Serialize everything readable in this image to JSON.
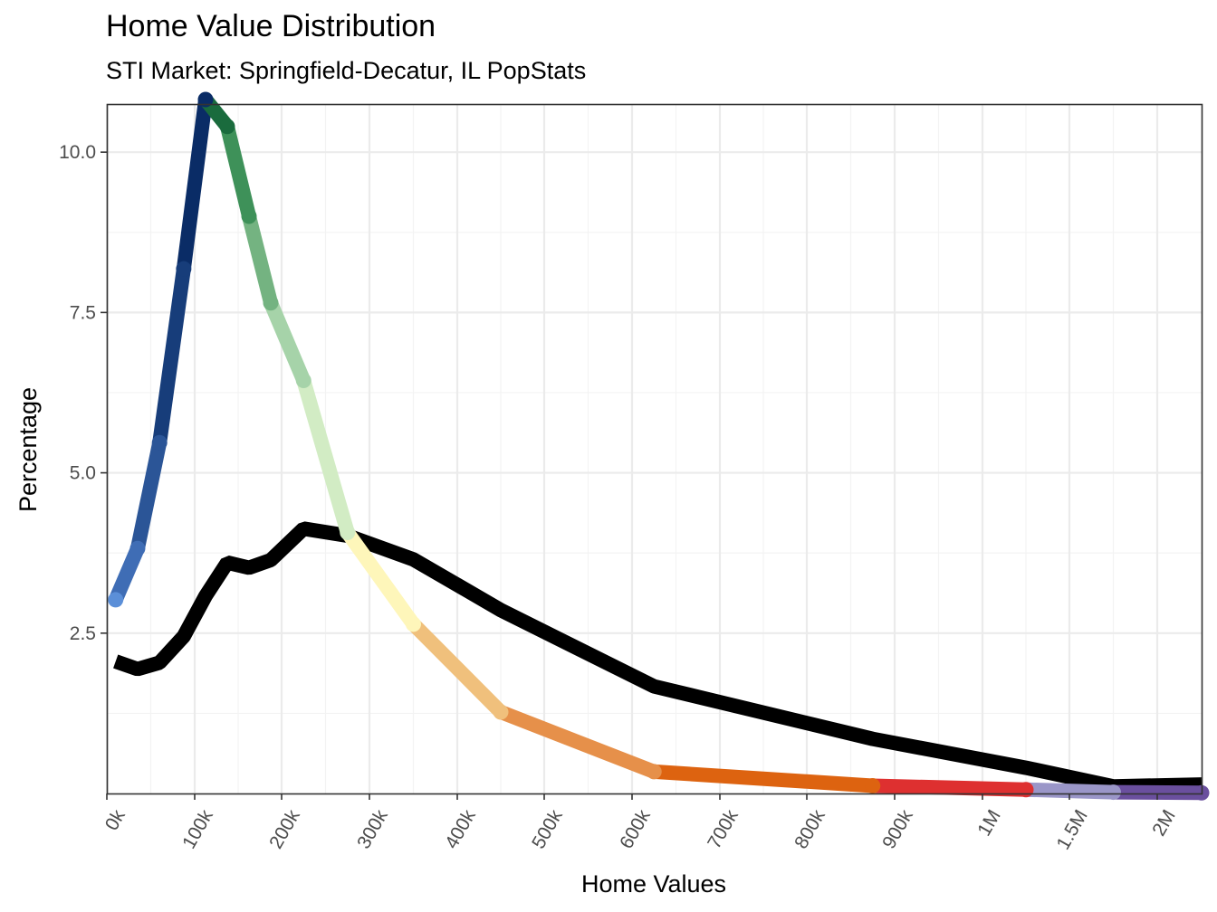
{
  "chart_data": {
    "type": "line",
    "title": "Home Value Distribution",
    "subtitle": "STI Market: Springfield-Decatur, IL PopStats",
    "xlabel": "Home Values",
    "ylabel": "Percentage",
    "x_ticks": [
      "0k",
      "100k",
      "200k",
      "300k",
      "400k",
      "500k",
      "600k",
      "700k",
      "800k",
      "900k",
      "1M",
      "1.5M",
      "2M"
    ],
    "y_ticks": [
      2.5,
      5.0,
      7.5,
      10.0
    ],
    "y_tick_labels": [
      "2.5",
      "5.0",
      "7.5",
      "10.0"
    ],
    "ylim": [
      0,
      10.75
    ],
    "grid": true,
    "legend": "none",
    "series": [
      {
        "color": "#000000",
        "points": [
          {
            "x": 10000,
            "y": 2.06
          },
          {
            "x": 35000,
            "y": 1.94
          },
          {
            "x": 60000,
            "y": 2.04
          },
          {
            "x": 87500,
            "y": 2.45
          },
          {
            "x": 112500,
            "y": 3.08
          },
          {
            "x": 137500,
            "y": 3.6
          },
          {
            "x": 162500,
            "y": 3.52
          },
          {
            "x": 187500,
            "y": 3.64
          },
          {
            "x": 225000,
            "y": 4.13
          },
          {
            "x": 275000,
            "y": 4.02
          },
          {
            "x": 350000,
            "y": 3.65
          },
          {
            "x": 450000,
            "y": 2.86
          },
          {
            "x": 625000,
            "y": 1.67
          },
          {
            "x": 875000,
            "y": 0.85
          },
          {
            "x": 1250000,
            "y": 0.4
          },
          {
            "x": 1750000,
            "y": 0.11
          },
          {
            "x": 2500000,
            "y": 0.14
          }
        ]
      },
      {
        "color_gradient": true,
        "points": [
          {
            "x": 10000,
            "y": 3.02,
            "color": "#5b8fd8"
          },
          {
            "x": 35000,
            "y": 3.82,
            "color": "#3f6db5"
          },
          {
            "x": 60000,
            "y": 5.47,
            "color": "#2b5597"
          },
          {
            "x": 87500,
            "y": 8.18,
            "color": "#173d7a"
          },
          {
            "x": 112500,
            "y": 10.82,
            "color": "#0a2c66"
          },
          {
            "x": 137500,
            "y": 10.4,
            "color": "#1a6b3d"
          },
          {
            "x": 162500,
            "y": 9.0,
            "color": "#3e9159"
          },
          {
            "x": 187500,
            "y": 7.65,
            "color": "#74b381"
          },
          {
            "x": 225000,
            "y": 6.44,
            "color": "#a6d3a9"
          },
          {
            "x": 275000,
            "y": 4.07,
            "color": "#d2ecc4"
          },
          {
            "x": 350000,
            "y": 2.64,
            "color": "#fef6ba"
          },
          {
            "x": 450000,
            "y": 1.27,
            "color": "#f0c07c"
          },
          {
            "x": 625000,
            "y": 0.34,
            "color": "#e6904a"
          },
          {
            "x": 875000,
            "y": 0.12,
            "color": "#dd6310"
          },
          {
            "x": 1250000,
            "y": 0.06,
            "color": "#de3030"
          },
          {
            "x": 1750000,
            "y": 0.02,
            "color": "#9a96c8"
          },
          {
            "x": 2500000,
            "y": 0.01,
            "color": "#6a4f9e"
          }
        ]
      }
    ]
  }
}
